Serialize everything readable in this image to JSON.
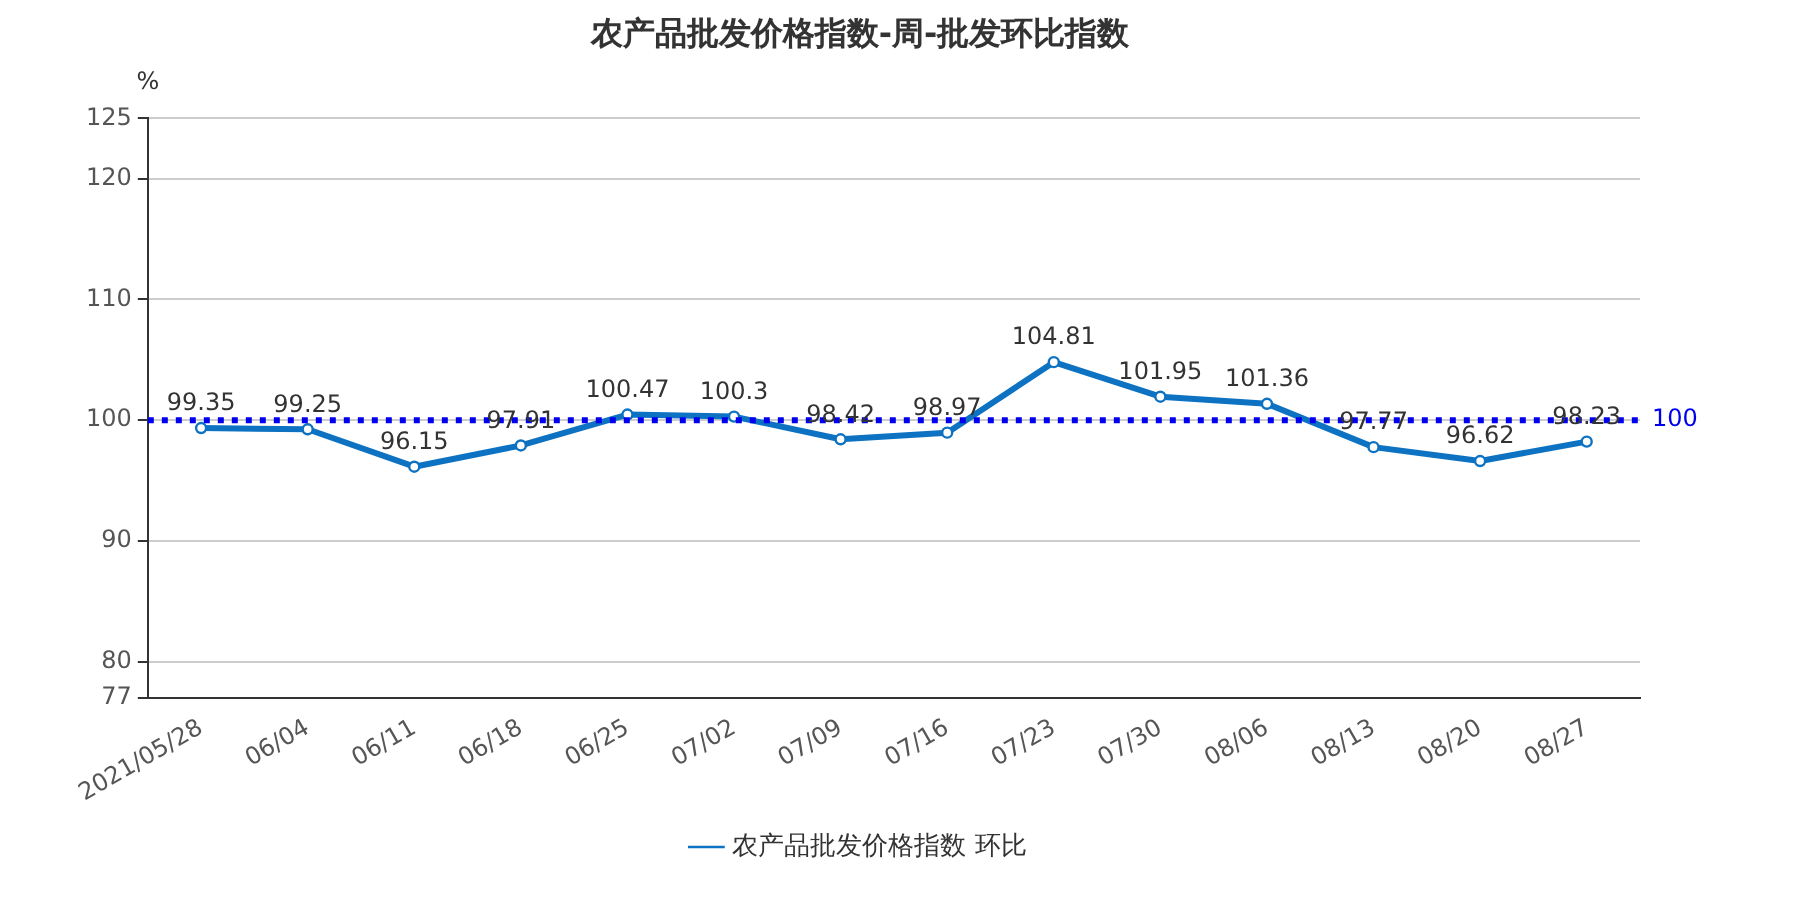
{
  "chart_data": {
    "type": "line",
    "title": "农产品批发价格指数-周-批发环比指数",
    "ylabel": "%",
    "categories": [
      "2021/05/28",
      "06/04",
      "06/11",
      "06/18",
      "06/25",
      "07/02",
      "07/09",
      "07/16",
      "07/23",
      "07/30",
      "08/06",
      "08/13",
      "08/20",
      "08/27"
    ],
    "series": [
      {
        "name": "农产品批发价格指数 环比",
        "color": "#0e72c2",
        "values": [
          99.35,
          99.25,
          96.15,
          97.91,
          100.47,
          100.3,
          98.42,
          98.97,
          104.81,
          101.95,
          101.36,
          97.77,
          96.62,
          98.23
        ]
      }
    ],
    "ylim": [
      77,
      125
    ],
    "yticks": [
      77,
      80,
      90,
      100,
      110,
      120,
      125
    ],
    "ref_lines": [
      {
        "axis": "y",
        "value": 100,
        "label": "100",
        "color": "#0000ee",
        "line_style": "dotted"
      }
    ],
    "data_labels": true,
    "grid": "y",
    "legend": "bottom",
    "marker": "circle",
    "line_style": "solid"
  }
}
